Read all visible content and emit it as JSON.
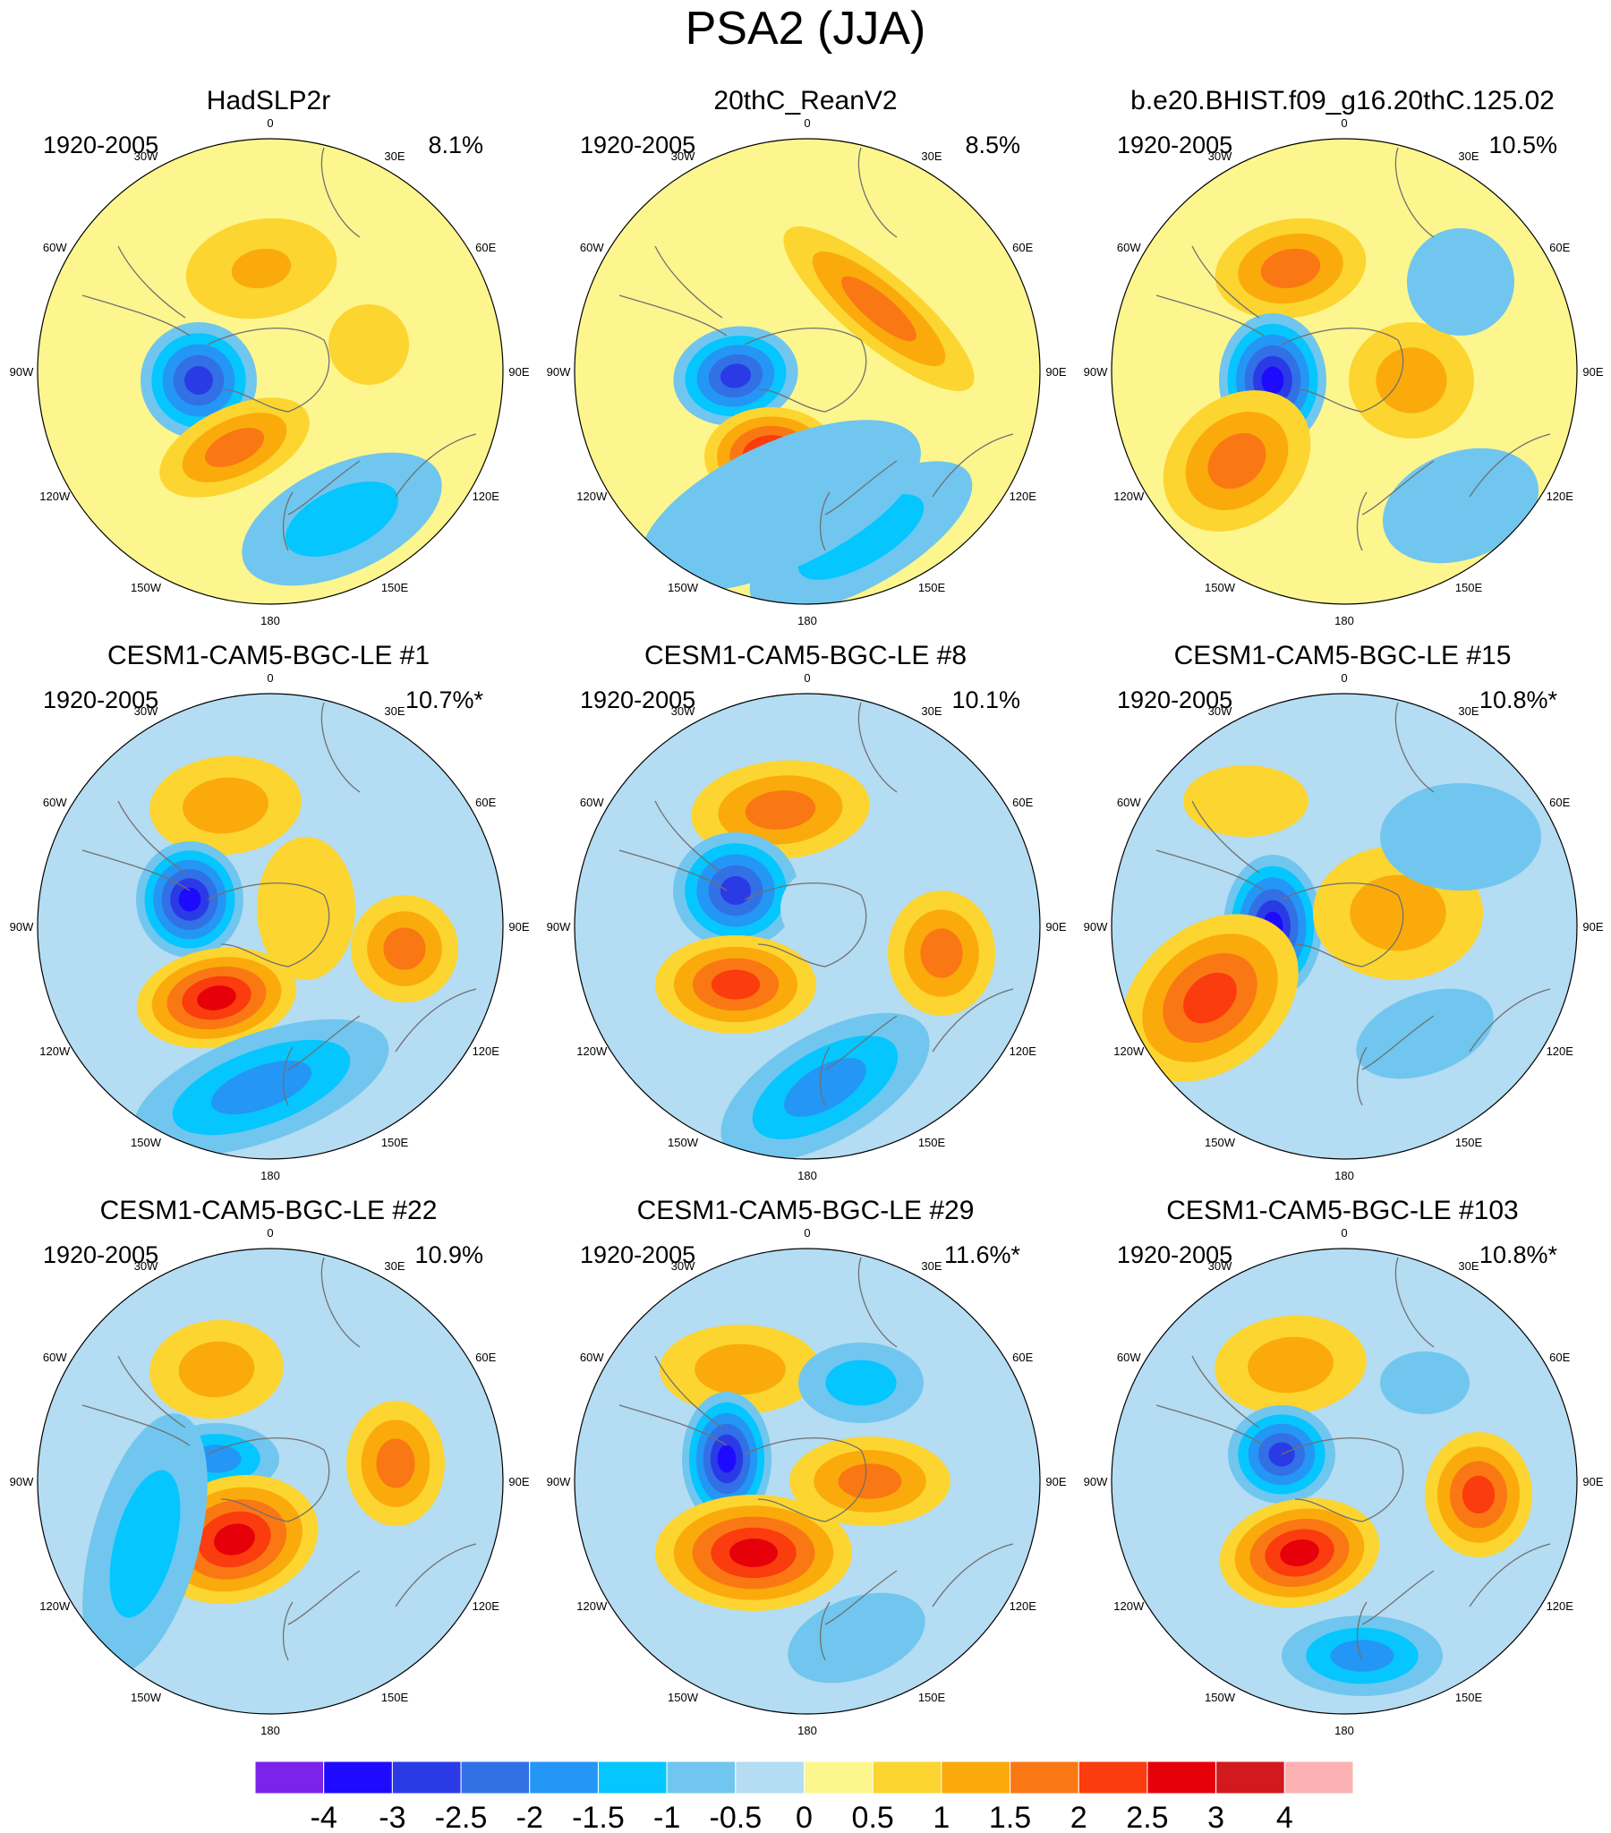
{
  "figure": {
    "title": "PSA2 (JJA)",
    "period": "1920-2005",
    "longitude_labels": [
      "0",
      "30E",
      "60E",
      "90E",
      "120E",
      "150E",
      "180",
      "150W",
      "120W",
      "90W",
      "60W",
      "30W"
    ]
  },
  "panels": [
    {
      "title": "HadSLP2r",
      "pct": "8.1%"
    },
    {
      "title": "20thC_ReanV2",
      "pct": "8.5%"
    },
    {
      "title": "b.e20.BHIST.f09_g16.20thC.125.02",
      "pct": "10.5%"
    },
    {
      "title": "CESM1-CAM5-BGC-LE #1",
      "pct": "10.7%*"
    },
    {
      "title": "CESM1-CAM5-BGC-LE #8",
      "pct": "10.1%"
    },
    {
      "title": "CESM1-CAM5-BGC-LE #15",
      "pct": "10.8%*"
    },
    {
      "title": "CESM1-CAM5-BGC-LE #22",
      "pct": "10.9%"
    },
    {
      "title": "CESM1-CAM5-BGC-LE #29",
      "pct": "11.6%*"
    },
    {
      "title": "CESM1-CAM5-BGC-LE #103",
      "pct": "10.8%*"
    }
  ],
  "colorbar": {
    "labels": [
      "-4",
      "-3",
      "-2.5",
      "-2",
      "-1.5",
      "-1",
      "-0.5",
      "0",
      "0.5",
      "1",
      "1.5",
      "2",
      "2.5",
      "3",
      "4"
    ],
    "colors": [
      "#7b23e8",
      "#1e0aff",
      "#2a3be6",
      "#3270e6",
      "#2496f5",
      "#05c6ff",
      "#70c6ee",
      "#b4dcf2",
      "#fdf68e",
      "#fcd530",
      "#fbaa0c",
      "#fa7814",
      "#fb3c0e",
      "#e6000a",
      "#d21a1e",
      "#fcb2b2"
    ]
  }
}
